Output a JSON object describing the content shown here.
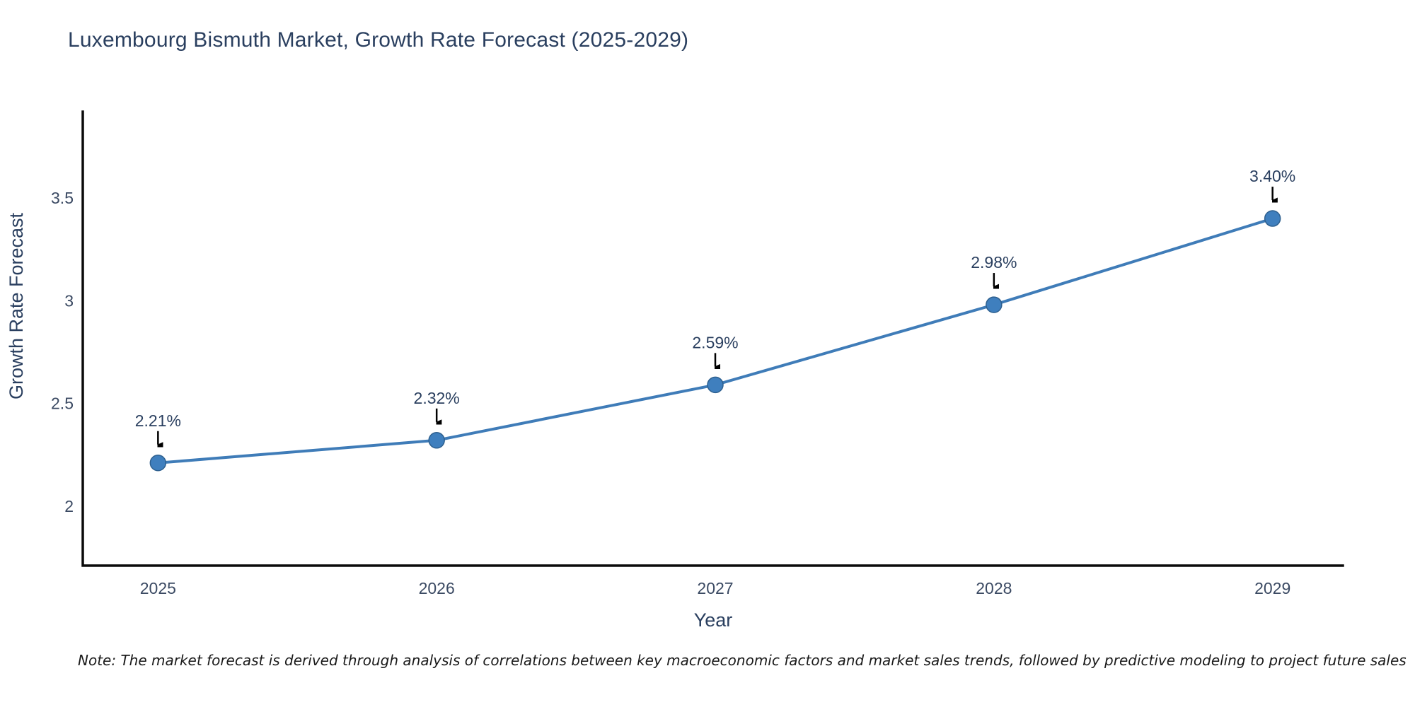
{
  "chart_data": {
    "type": "line",
    "title": "Luxembourg Bismuth Market, Growth Rate Forecast (2025-2029)",
    "xlabel": "Year",
    "ylabel": "Growth Rate Forecast",
    "x": [
      2025,
      2026,
      2027,
      2028,
      2029
    ],
    "x_tick_labels": [
      "2025",
      "2026",
      "2027",
      "2028",
      "2029"
    ],
    "values": [
      2.21,
      2.32,
      2.59,
      2.98,
      3.4
    ],
    "point_labels": [
      "2.21%",
      "2.32%",
      "2.59%",
      "2.98%",
      "3.40%"
    ],
    "yticks": [
      2,
      2.5,
      3,
      3.5
    ],
    "ytick_labels": [
      "2",
      "2.5",
      "3",
      "3.5"
    ],
    "xlim": [
      2024.73,
      2029.27
    ],
    "ylim": [
      1.71,
      3.92
    ],
    "grid": false,
    "legend": null,
    "annotation_style": "value label with black arrow pointing down to each marker",
    "line_color": "#3f7cb8",
    "marker_color": "#3f7fbe",
    "marker_edge_color": "#2e608f",
    "arrow_color": "#000000",
    "spine_color": "#0a0a0a",
    "title_color": "#2a3f5f",
    "tick_color": "#3b4a63",
    "note": "Note: The market forecast is derived through analysis of correlations between key macroeconomic factors and market sales trends, followed by predictive modeling to project future sales"
  }
}
